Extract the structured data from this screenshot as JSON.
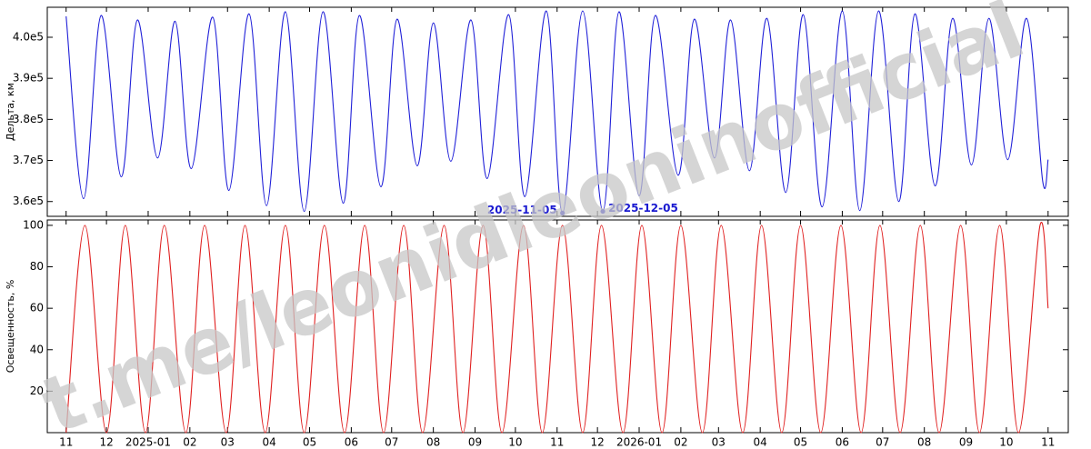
{
  "watermark": "t.me/leonidleoninofficial",
  "chart_data": [
    {
      "type": "line",
      "ylabel": "Дельта, км",
      "xlim": [
        "2024-10-18",
        "2026-11-16"
      ],
      "ylim": [
        356400,
        407300
      ],
      "yticks": [
        {
          "value": 360000,
          "label": "3.6e5"
        },
        {
          "value": 370000,
          "label": "3.7e5"
        },
        {
          "value": 380000,
          "label": "3.8e5"
        },
        {
          "value": 390000,
          "label": "3.9e5"
        },
        {
          "value": 400000,
          "label": "4.0e5"
        }
      ],
      "series": [
        {
          "color": "#2020d8",
          "x": [
            "2024-11-01",
            "2024-11-14",
            "2024-11-27",
            "2024-12-12",
            "2024-12-24",
            "2025-01-08",
            "2025-01-21",
            "2025-02-02",
            "2025-02-18",
            "2025-03-02",
            "2025-03-17",
            "2025-03-30",
            "2025-04-13",
            "2025-04-27",
            "2025-05-11",
            "2025-05-26",
            "2025-06-07",
            "2025-06-23",
            "2025-07-05",
            "2025-07-20",
            "2025-08-01",
            "2025-08-14",
            "2025-08-29",
            "2025-09-10",
            "2025-09-26",
            "2025-10-08",
            "2025-10-24",
            "2025-11-05",
            "2025-11-20",
            "2025-12-05",
            "2025-12-17",
            "2026-01-01",
            "2026-01-13",
            "2026-01-30",
            "2026-02-11",
            "2026-02-26",
            "2026-03-10",
            "2026-03-24",
            "2026-04-06",
            "2026-04-20",
            "2026-05-03",
            "2026-05-17",
            "2026-06-01",
            "2026-06-14",
            "2026-06-28",
            "2026-07-13",
            "2026-07-25",
            "2026-08-09",
            "2026-08-22",
            "2026-09-05",
            "2026-09-18",
            "2026-10-02",
            "2026-10-16",
            "2026-10-28",
            "2026-11-01"
          ],
          "values": [
            405100,
            360700,
            405300,
            366000,
            404200,
            370600,
            403900,
            368000,
            404900,
            362700,
            405700,
            359000,
            406200,
            357600,
            406200,
            359600,
            405300,
            363600,
            404400,
            368700,
            403500,
            369800,
            404200,
            365600,
            405500,
            361200,
            406400,
            357200,
            406400,
            357600,
            406200,
            361400,
            405300,
            366400,
            404400,
            370600,
            404200,
            367500,
            404600,
            362200,
            405500,
            358700,
            406400,
            357800,
            406400,
            360000,
            405700,
            363800,
            404600,
            368900,
            404600,
            370200,
            404600,
            364900,
            370200
          ]
        }
      ],
      "annotations": [
        {
          "text": "2025-11-05",
          "x": "2025-11-05",
          "y": 357200
        },
        {
          "text": "2025-12-05",
          "x": "2025-12-05",
          "y": 357600
        }
      ]
    },
    {
      "type": "line",
      "ylabel": "Освещенность, %",
      "xlim": [
        "2024-10-18",
        "2026-11-16"
      ],
      "ylim": [
        0,
        102.6
      ],
      "yticks": [
        20,
        40,
        60,
        80,
        100
      ],
      "xticks": [
        {
          "value": "2024-11-01",
          "label": "11"
        },
        {
          "value": "2024-12-01",
          "label": "12"
        },
        {
          "value": "2025-01-01",
          "label": "2025-01"
        },
        {
          "value": "2025-02-01",
          "label": "02"
        },
        {
          "value": "2025-03-01",
          "label": "03"
        },
        {
          "value": "2025-04-01",
          "label": "04"
        },
        {
          "value": "2025-05-01",
          "label": "05"
        },
        {
          "value": "2025-06-01",
          "label": "06"
        },
        {
          "value": "2025-07-01",
          "label": "07"
        },
        {
          "value": "2025-08-01",
          "label": "08"
        },
        {
          "value": "2025-09-01",
          "label": "09"
        },
        {
          "value": "2025-10-01",
          "label": "10"
        },
        {
          "value": "2025-11-01",
          "label": "11"
        },
        {
          "value": "2025-12-01",
          "label": "12"
        },
        {
          "value": "2026-01-01",
          "label": "2026-01"
        },
        {
          "value": "2026-02-01",
          "label": "02"
        },
        {
          "value": "2026-03-01",
          "label": "03"
        },
        {
          "value": "2026-04-01",
          "label": "04"
        },
        {
          "value": "2026-05-01",
          "label": "05"
        },
        {
          "value": "2026-06-01",
          "label": "06"
        },
        {
          "value": "2026-07-01",
          "label": "07"
        },
        {
          "value": "2026-08-01",
          "label": "08"
        },
        {
          "value": "2026-09-01",
          "label": "09"
        },
        {
          "value": "2026-10-01",
          "label": "10"
        },
        {
          "value": "2026-11-01",
          "label": "11"
        }
      ],
      "series": [
        {
          "color": "#e02020",
          "x": [
            "2024-11-01",
            "2024-11-15",
            "2024-12-01",
            "2024-12-15",
            "2024-12-30",
            "2025-01-13",
            "2025-01-29",
            "2025-02-12",
            "2025-02-28",
            "2025-03-14",
            "2025-03-29",
            "2025-04-13",
            "2025-04-27",
            "2025-05-12",
            "2025-05-27",
            "2025-06-11",
            "2025-06-25",
            "2025-07-10",
            "2025-07-24",
            "2025-08-09",
            "2025-08-23",
            "2025-09-07",
            "2025-09-21",
            "2025-10-07",
            "2025-10-21",
            "2025-11-05",
            "2025-11-20",
            "2025-12-04",
            "2025-12-20",
            "2026-01-03",
            "2026-01-18",
            "2026-02-01",
            "2026-02-17",
            "2026-03-03",
            "2026-03-19",
            "2026-04-02",
            "2026-04-17",
            "2026-05-01",
            "2026-05-16",
            "2026-05-31",
            "2026-06-15",
            "2026-06-29",
            "2026-07-14",
            "2026-07-29",
            "2026-08-12",
            "2026-08-28",
            "2026-09-11",
            "2026-09-26",
            "2026-10-10",
            "2026-10-26",
            "2026-11-01"
          ],
          "values": [
            0,
            100,
            0,
            100,
            0,
            100,
            0,
            100,
            0,
            100,
            0,
            100,
            0,
            100,
            0,
            100,
            0,
            100,
            0,
            100,
            0,
            100,
            0,
            100,
            0,
            100,
            0,
            100,
            0,
            100,
            0,
            100,
            0,
            100,
            0,
            100,
            0,
            100,
            0,
            100,
            0,
            100,
            0,
            100,
            0,
            100,
            0,
            100,
            0,
            100,
            60
          ]
        }
      ]
    }
  ]
}
